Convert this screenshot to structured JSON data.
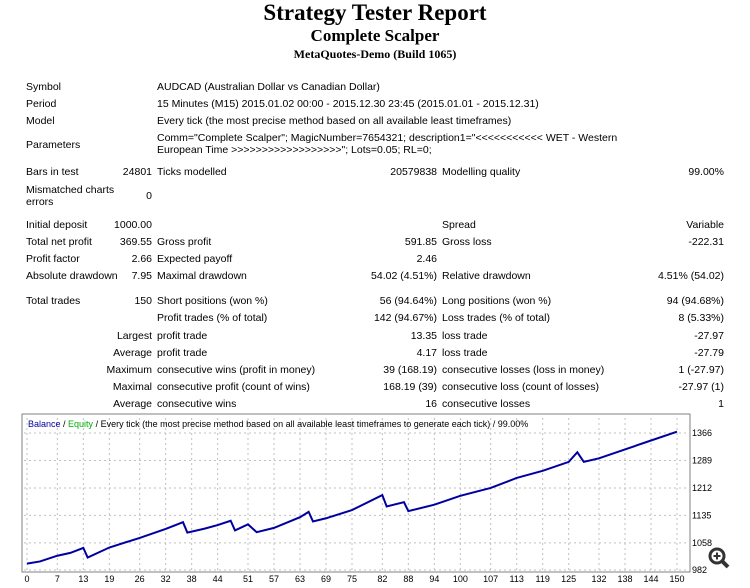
{
  "header": {
    "title": "Strategy Tester Report",
    "expert": "Complete Scalper",
    "server": "MetaQuotes-Demo (Build 1065)"
  },
  "info": [
    {
      "label": "Symbol",
      "value": "AUDCAD (Australian Dollar vs Canadian Dollar)"
    },
    {
      "label": "Period",
      "value": "15 Minutes (M15) 2015.01.02 00:00 - 2015.12.30 23:45 (2015.01.01 - 2015.12.31)"
    },
    {
      "label": "Model",
      "value": "Every tick (the most precise method based on all available least timeframes)"
    },
    {
      "label": "Parameters",
      "value": "Comm=\"Complete Scalper\"; MagicNumber=7654321; description1=\"<<<<<<<<<<< WET - Western European Time >>>>>>>>>>>>>>>>>>\"; Lots=0.05; RL=0;"
    }
  ],
  "stats": [
    [
      "Bars in test",
      "24801",
      "Ticks modelled",
      "20579838",
      "Modelling quality",
      "99.00%"
    ],
    [
      "Mismatched charts errors",
      "0",
      "",
      "",
      "",
      ""
    ],
    [
      "Initial deposit",
      "1000.00",
      "",
      "",
      "Spread",
      "Variable"
    ],
    [
      "Total net profit",
      "369.55",
      "Gross profit",
      "591.85",
      "Gross loss",
      "-222.31"
    ],
    [
      "Profit factor",
      "2.66",
      "Expected payoff",
      "2.46",
      "",
      ""
    ],
    [
      "Absolute drawdown",
      "7.95",
      "Maximal drawdown",
      "54.02 (4.51%)",
      "Relative drawdown",
      "4.51% (54.02)"
    ],
    [
      "Total trades",
      "150",
      "Short positions (won %)",
      "56 (94.64%)",
      "Long positions (won %)",
      "94 (94.68%)"
    ],
    [
      "",
      "",
      "Profit trades (% of total)",
      "142 (94.67%)",
      "Loss trades (% of total)",
      "8 (5.33%)"
    ],
    [
      "",
      "Largest",
      "profit trade",
      "13.35",
      "loss trade",
      "-27.97"
    ],
    [
      "",
      "Average",
      "profit trade",
      "4.17",
      "loss trade",
      "-27.79"
    ],
    [
      "",
      "Maximum",
      "consecutive wins (profit in money)",
      "39 (168.19)",
      "consecutive losses (loss in money)",
      "1 (-27.97)"
    ],
    [
      "",
      "Maximal",
      "consecutive profit (count of wins)",
      "168.19 (39)",
      "consecutive loss (count of losses)",
      "-27.97 (1)"
    ],
    [
      "",
      "Average",
      "consecutive wins",
      "16",
      "consecutive losses",
      "1"
    ]
  ],
  "chart_data": {
    "type": "line",
    "legend": {
      "balance": "Balance",
      "sep1": " / ",
      "equity": "Equity",
      "rest": " / Every tick (the most precise method based on all available least timeframes to generate each tick) / 99.00%"
    },
    "colors": {
      "balance": "#0000a0",
      "equity": "#00b000",
      "grid": "#c0c0c0"
    },
    "xticks": [
      0,
      7,
      13,
      19,
      26,
      32,
      38,
      44,
      51,
      57,
      63,
      69,
      75,
      82,
      88,
      94,
      100,
      107,
      113,
      119,
      125,
      132,
      138,
      144,
      150
    ],
    "yticks": [
      982,
      1058,
      1135,
      1212,
      1289,
      1366
    ],
    "xlim": [
      0,
      150
    ],
    "ylim": [
      982,
      1366
    ],
    "x": [
      0,
      3,
      7,
      10,
      13,
      14,
      19,
      26,
      32,
      36,
      37,
      41,
      44,
      47,
      48,
      51,
      53,
      57,
      63,
      65,
      66,
      69,
      75,
      82,
      83,
      87,
      88,
      94,
      100,
      107,
      113,
      119,
      125,
      127,
      128.5,
      132,
      138,
      144,
      150
    ],
    "balance": [
      1000,
      1006,
      1022,
      1030,
      1044,
      1017,
      1045,
      1072,
      1097,
      1116,
      1087,
      1098,
      1108,
      1120,
      1093,
      1110,
      1088,
      1100,
      1130,
      1145,
      1118,
      1127,
      1150,
      1192,
      1160,
      1172,
      1147,
      1165,
      1190,
      1212,
      1240,
      1260,
      1285,
      1312,
      1285,
      1295,
      1320,
      1345,
      1369.55
    ]
  }
}
